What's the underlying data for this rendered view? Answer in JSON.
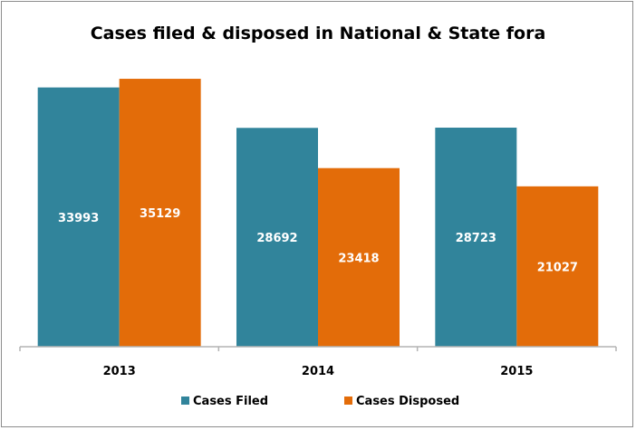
{
  "chart_data": {
    "type": "bar",
    "title": "Cases filed & disposed in National & State fora",
    "categories": [
      "2013",
      "2014",
      "2015"
    ],
    "series": [
      {
        "name": "Cases Filed",
        "values": [
          33993,
          28692,
          28723
        ],
        "color": "#31849B"
      },
      {
        "name": "Cases Disposed",
        "values": [
          35129,
          23418,
          21027
        ],
        "color": "#E36C09"
      }
    ],
    "ylim": [
      0,
      40000
    ],
    "grid": false,
    "legend": "bottom",
    "data_labels": true
  }
}
